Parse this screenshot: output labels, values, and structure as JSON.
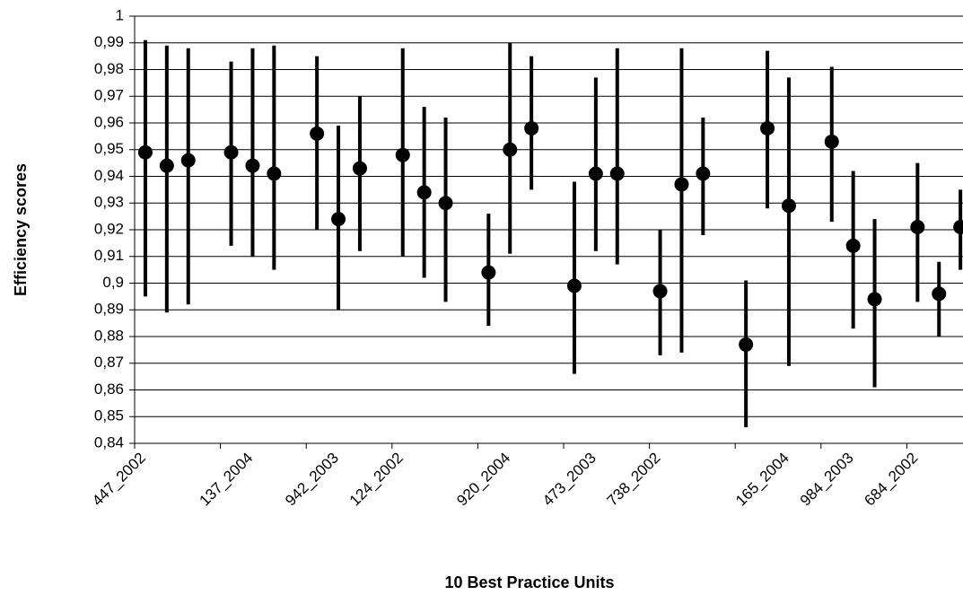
{
  "chart_data": {
    "type": "interval",
    "x_label": "10 Best Practice Units",
    "y_label": "Efficiency scores",
    "categories": [
      "447_2002",
      null,
      null,
      null,
      null,
      "137_2004",
      null,
      null,
      null,
      "942_2003",
      null,
      null,
      "124_2002",
      null,
      null,
      null,
      null,
      "920_2004",
      null,
      null,
      null,
      "473_2003",
      null,
      null,
      "738_2002",
      null,
      null,
      null,
      null,
      null,
      "165_2004",
      null,
      null,
      "984_2003",
      null,
      null,
      "684_2002",
      null,
      null,
      null
    ],
    "values": [
      0.949,
      0.944,
      0.946,
      null,
      0.949,
      0.944,
      0.941,
      null,
      0.956,
      0.924,
      0.943,
      null,
      0.948,
      0.934,
      0.93,
      null,
      0.904,
      0.95,
      0.958,
      null,
      0.899,
      0.941,
      0.941,
      null,
      0.897,
      0.937,
      0.941,
      null,
      0.877,
      0.958,
      0.929,
      null,
      0.953,
      0.914,
      0.894,
      null,
      0.921,
      0.896,
      0.921,
      null
    ],
    "low": [
      0.895,
      0.889,
      0.892,
      null,
      0.914,
      0.91,
      0.905,
      null,
      0.92,
      0.89,
      0.912,
      null,
      0.91,
      0.902,
      0.893,
      null,
      0.884,
      0.911,
      0.935,
      null,
      0.866,
      0.912,
      0.907,
      null,
      0.873,
      0.874,
      0.918,
      null,
      0.846,
      0.928,
      0.869,
      null,
      0.923,
      0.883,
      0.861,
      null,
      0.893,
      0.88,
      0.905,
      null
    ],
    "high": [
      0.991,
      0.989,
      0.988,
      null,
      0.983,
      0.988,
      0.989,
      null,
      0.985,
      0.959,
      0.97,
      null,
      0.988,
      0.966,
      0.962,
      null,
      0.926,
      0.99,
      0.985,
      null,
      0.938,
      0.977,
      0.988,
      null,
      0.92,
      0.988,
      0.962,
      null,
      0.901,
      0.987,
      0.977,
      null,
      0.981,
      0.942,
      0.924,
      null,
      0.945,
      0.908,
      0.935,
      null
    ],
    "color": "#000000",
    "ylim": [
      0.84,
      1
    ],
    "yticks": [
      {
        "value": 0.84,
        "label": "0,84"
      },
      {
        "value": 0.85,
        "label": "0,85"
      },
      {
        "value": 0.86,
        "label": "0,86"
      },
      {
        "value": 0.87,
        "label": "0,87"
      },
      {
        "value": 0.88,
        "label": "0,88"
      },
      {
        "value": 0.89,
        "label": "0,89"
      },
      {
        "value": 0.9,
        "label": "0,9"
      },
      {
        "value": 0.91,
        "label": "0,91"
      },
      {
        "value": 0.92,
        "label": "0,92"
      },
      {
        "value": 0.93,
        "label": "0,93"
      },
      {
        "value": 0.94,
        "label": "0,94"
      },
      {
        "value": 0.95,
        "label": "0,95"
      },
      {
        "value": 0.96,
        "label": "0,96"
      },
      {
        "value": 0.97,
        "label": "0,97"
      },
      {
        "value": 0.98,
        "label": "0,98"
      },
      {
        "value": 0.99,
        "label": "0,99"
      },
      1
    ],
    "grid": true
  }
}
